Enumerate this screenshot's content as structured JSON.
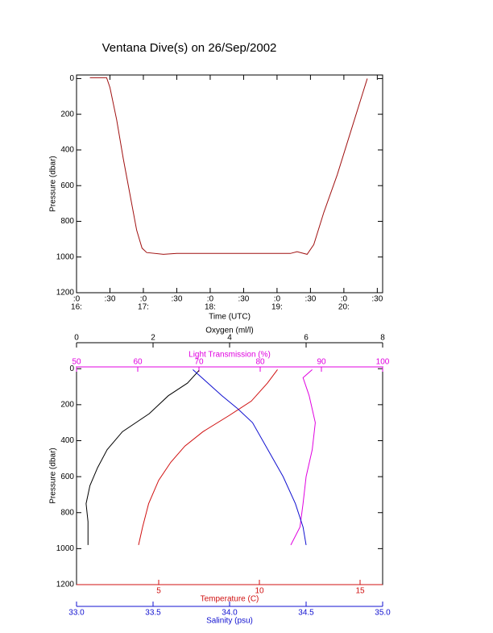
{
  "title": "Ventana Dive(s) on 26/Sep/2002",
  "chart_data": [
    {
      "type": "line",
      "xlabel": "Time (UTC)",
      "ylabel": "Pressure (dbar)",
      "xlim": [
        16.0,
        20.58
      ],
      "xticks": [
        {
          "value": 16.0,
          "label": ":0"
        },
        {
          "value": 16.5,
          "label": ":30"
        },
        {
          "value": 17.0,
          "label": ":0"
        },
        {
          "value": 17.5,
          "label": ":30"
        },
        {
          "value": 18.0,
          "label": ":0"
        },
        {
          "value": 18.5,
          "label": ":30"
        },
        {
          "value": 19.0,
          "label": ":0"
        },
        {
          "value": 19.5,
          "label": ":30"
        },
        {
          "value": 20.0,
          "label": ":0"
        },
        {
          "value": 20.5,
          "label": ":30"
        }
      ],
      "xticks_hours": [
        {
          "value": 16,
          "label": "16:"
        },
        {
          "value": 17,
          "label": "17:"
        },
        {
          "value": 18,
          "label": "18:"
        },
        {
          "value": 19,
          "label": "19:"
        },
        {
          "value": 20,
          "label": "20:"
        }
      ],
      "ylim": [
        1200,
        -20
      ],
      "yticks": [
        0,
        200,
        400,
        600,
        800,
        1000,
        1200
      ],
      "series": [
        {
          "color": "#a01010",
          "x": [
            16.2,
            16.45,
            16.5,
            16.6,
            16.7,
            16.8,
            16.9,
            16.98,
            17.05,
            17.3,
            17.5,
            19.2,
            19.3,
            19.45,
            19.55,
            19.7,
            19.9,
            20.1,
            20.25,
            20.35
          ],
          "values": [
            -5,
            -5,
            50,
            230,
            450,
            650,
            850,
            950,
            975,
            985,
            980,
            980,
            970,
            985,
            930,
            750,
            540,
            300,
            120,
            0
          ]
        }
      ]
    },
    {
      "type": "line",
      "ylabel": "Pressure (dbar)",
      "ylim": [
        1200,
        -10
      ],
      "yticks": [
        0,
        200,
        400,
        600,
        800,
        1000,
        1200
      ],
      "x_axes": [
        {
          "label": "Oxygen (ml/l)",
          "color": "#000000",
          "position": "top",
          "xlim": [
            0,
            8
          ],
          "xticks": [
            0,
            2,
            4,
            6,
            8
          ]
        },
        {
          "label": "Light Transmission (%)",
          "color": "#e000e0",
          "position": "top",
          "xlim": [
            50,
            100
          ],
          "xticks": [
            50,
            60,
            70,
            80,
            90,
            100
          ]
        },
        {
          "label": "Temperature (C)",
          "color": "#d01010",
          "position": "bottom",
          "xlim": [
            0.92,
            16.12
          ],
          "xticks": [
            5,
            10,
            15
          ]
        },
        {
          "label": "Salinity (psu)",
          "color": "#1010d0",
          "position": "bottom",
          "xlim": [
            33.0,
            35.0
          ],
          "xticks": [
            {
              "value": 33.0,
              "label": "33.0"
            },
            {
              "value": 33.5,
              "label": "33.5"
            },
            {
              "value": 34.0,
              "label": "34.0"
            },
            {
              "value": 34.5,
              "label": "34.5"
            },
            {
              "value": 35.0,
              "label": "35.0"
            }
          ]
        }
      ],
      "series": [
        {
          "color": "#000000",
          "xaxis": 0,
          "x": [
            3.2,
            2.9,
            2.4,
            1.9,
            1.2,
            0.8,
            0.55,
            0.35,
            0.25,
            0.3,
            0.3
          ],
          "values": [
            10,
            80,
            150,
            250,
            350,
            450,
            550,
            650,
            750,
            850,
            980
          ]
        },
        {
          "color": "#e000e0",
          "xaxis": 1,
          "x": [
            88.5,
            87,
            88,
            89,
            88.5,
            87.5,
            87,
            86.5,
            85
          ],
          "values": [
            5,
            50,
            150,
            300,
            450,
            600,
            750,
            880,
            980
          ]
        },
        {
          "color": "#d01010",
          "xaxis": 2,
          "x": [
            10.9,
            10.4,
            9.6,
            8.5,
            7.2,
            6.3,
            5.6,
            5.0,
            4.5,
            4.2,
            4.0
          ],
          "values": [
            5,
            80,
            180,
            260,
            350,
            430,
            520,
            620,
            750,
            880,
            980
          ]
        },
        {
          "color": "#1010d0",
          "xaxis": 3,
          "x": [
            33.76,
            33.95,
            34.05,
            34.15,
            34.25,
            34.35,
            34.43,
            34.48,
            34.5
          ],
          "values": [
            5,
            150,
            220,
            300,
            450,
            600,
            750,
            880,
            980
          ]
        }
      ]
    }
  ]
}
